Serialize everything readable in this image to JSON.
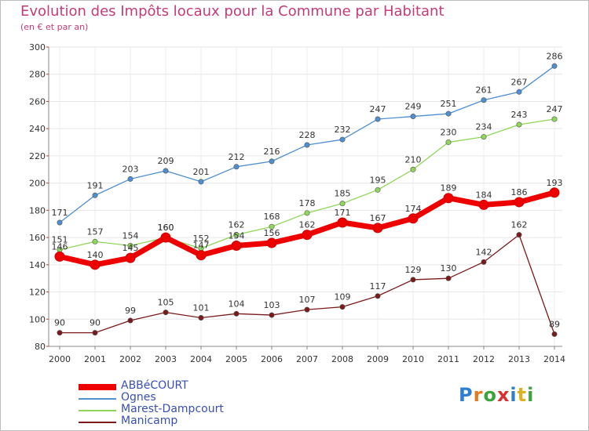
{
  "chart_data": {
    "type": "line",
    "title": "Evolution des Impôts locaux pour la Commune par Habitant",
    "subtitle": "(en € et par an)",
    "categories": [
      "2000",
      "2001",
      "2002",
      "2003",
      "2004",
      "2005",
      "2006",
      "2007",
      "2008",
      "2009",
      "2010",
      "2011",
      "2012",
      "2013",
      "2014"
    ],
    "ylim": [
      80,
      300
    ],
    "yticks": [
      80,
      100,
      120,
      140,
      160,
      180,
      200,
      220,
      240,
      260,
      280,
      300
    ],
    "series": [
      {
        "name": "Ognes",
        "color": "#4f8fd0",
        "values": [
          171,
          191,
          203,
          209,
          201,
          212,
          216,
          228,
          232,
          247,
          249,
          251,
          261,
          267,
          286
        ]
      },
      {
        "name": "Marest-Dampcourt",
        "color": "#8fd65a",
        "values": [
          151,
          157,
          154,
          160,
          152,
          162,
          168,
          178,
          185,
          195,
          210,
          230,
          234,
          243,
          247
        ]
      },
      {
        "name": "Manicamp",
        "color": "#7a1a1a",
        "values": [
          90,
          90,
          99,
          105,
          101,
          104,
          103,
          107,
          109,
          117,
          129,
          130,
          142,
          162,
          89
        ]
      },
      {
        "name": "ABBéCOURT",
        "color": "#ee0000",
        "values": [
          146,
          140,
          145,
          160,
          147,
          154,
          156,
          162,
          171,
          167,
          174,
          189,
          184,
          186,
          193
        ]
      }
    ]
  },
  "legend": [
    {
      "label": "ABBéCOURT",
      "color": "#ee0000"
    },
    {
      "label": "Ognes",
      "color": "#4f8fd0"
    },
    {
      "label": "Marest-Dampcourt",
      "color": "#8fd65a"
    },
    {
      "label": "Manicamp",
      "color": "#7a1a1a"
    }
  ],
  "logo": {
    "text": "Proxiti"
  }
}
